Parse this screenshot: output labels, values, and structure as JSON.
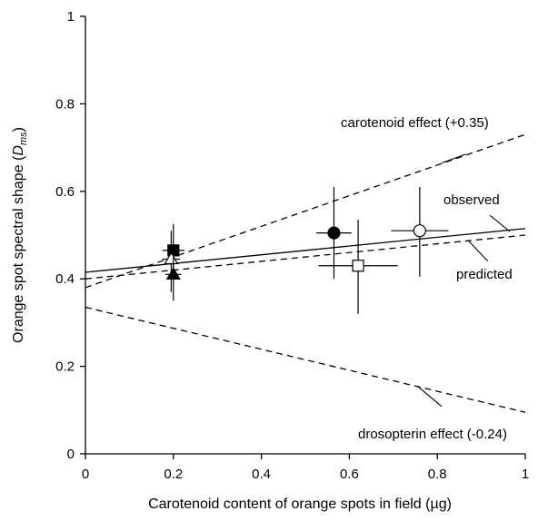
{
  "chart_data": {
    "type": "scatter",
    "xlabel_pre": "Carotenoid content of orange spots in field (",
    "xlabel_unit": "µg",
    "xlabel_post": ")",
    "ylabel_pre": "Orange spot spectral shape (",
    "ylabel_var": "D",
    "ylabel_sub": "ms",
    "ylabel_post": ")",
    "xlim": [
      0,
      1
    ],
    "ylim": [
      0,
      1
    ],
    "x_ticks": [
      0,
      0.2,
      0.4,
      0.6,
      0.8,
      1
    ],
    "x_tick_labels": [
      "0",
      "0.2",
      "0.4",
      "0.6",
      "0.8",
      "1"
    ],
    "y_ticks": [
      0,
      0.2,
      0.4,
      0.6,
      0.8,
      1
    ],
    "y_tick_labels": [
      "0",
      "0.2",
      "0.4",
      "0.6",
      "0.8",
      "1"
    ],
    "grid": false,
    "points": [
      {
        "x": 0.2,
        "y": 0.465,
        "marker": "square",
        "filled": true,
        "xerr": 0.025,
        "yerr": [
          0.4,
          0.525
        ]
      },
      {
        "x": 0.195,
        "y": 0.445,
        "marker": "triangle",
        "filled": false,
        "xerr": 0.02,
        "yerr": [
          0.37,
          0.51
        ]
      },
      {
        "x": 0.2,
        "y": 0.41,
        "marker": "triangle",
        "filled": true,
        "xerr": 0.018,
        "yerr": [
          0.35,
          0.47
        ]
      },
      {
        "x": 0.565,
        "y": 0.505,
        "marker": "circle",
        "filled": true,
        "xerr": 0.04,
        "yerr": [
          0.4,
          0.61
        ]
      },
      {
        "x": 0.62,
        "y": 0.43,
        "marker": "square",
        "filled": false,
        "xerr": 0.09,
        "yerr": [
          0.32,
          0.535
        ]
      },
      {
        "x": 0.76,
        "y": 0.51,
        "marker": "circle",
        "filled": false,
        "xerr": 0.065,
        "yerr": [
          0.405,
          0.61
        ]
      }
    ],
    "lines": [
      {
        "name": "observed",
        "style": "solid",
        "x": [
          0,
          1
        ],
        "y": [
          0.415,
          0.515
        ]
      },
      {
        "name": "predicted",
        "style": "dashed",
        "x": [
          0,
          1
        ],
        "y": [
          0.4,
          0.5
        ]
      },
      {
        "name": "carotenoid effect (+0.35)",
        "style": "dashed",
        "x": [
          0,
          1
        ],
        "y": [
          0.38,
          0.73
        ]
      },
      {
        "name": "drosopterin effect (-0.24)",
        "style": "dashed",
        "x": [
          0,
          1
        ],
        "y": [
          0.335,
          0.095
        ]
      }
    ],
    "annotations": [
      {
        "text": "carotenoid effect (+0.35)",
        "leader_from": [
          0.81,
          0.665
        ],
        "leader_to": [
          0.865,
          0.685
        ]
      },
      {
        "text": "observed",
        "leader_from": [
          0.965,
          0.508
        ],
        "leader_to": [
          0.92,
          0.545
        ]
      },
      {
        "text": "predicted",
        "leader_from": [
          0.87,
          0.488
        ],
        "leader_to": [
          0.915,
          0.44
        ]
      },
      {
        "text": "drosopterin effect (-0.24)",
        "leader_from": [
          0.755,
          0.155
        ],
        "leader_to": [
          0.81,
          0.108
        ]
      }
    ]
  }
}
